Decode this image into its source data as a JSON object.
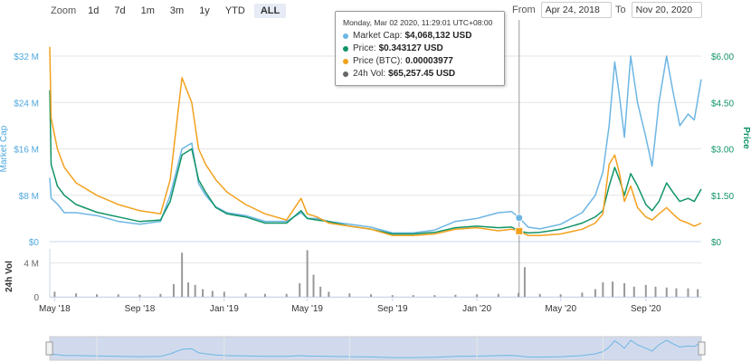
{
  "zoom": {
    "label": "Zoom",
    "buttons": [
      {
        "label": "1d",
        "active": false
      },
      {
        "label": "7d",
        "active": false
      },
      {
        "label": "1m",
        "active": false
      },
      {
        "label": "3m",
        "active": false
      },
      {
        "label": "1y",
        "active": false
      },
      {
        "label": "YTD",
        "active": false
      },
      {
        "label": "ALL",
        "active": true
      }
    ]
  },
  "range": {
    "from_label": "From",
    "from_value": "Apr 24, 2018",
    "to_label": "To",
    "to_value": "Nov 20, 2020"
  },
  "tooltip": {
    "header": "Monday, Mar 02 2020, 11:29:01 UTC+08:00",
    "rows": [
      {
        "label": "Market Cap:",
        "value": "$4,068,132 USD",
        "color": "#6db6e4"
      },
      {
        "label": "Price:",
        "value": "$0.343127 USD",
        "color": "#119466"
      },
      {
        "label": "Price (BTC):",
        "value": "0.00003977",
        "color": "#f2a11e"
      },
      {
        "label": "24h Vol:",
        "value": "$65,257.45 USD",
        "color": "#666666"
      }
    ]
  },
  "chart_data": {
    "type": "line",
    "x_range": [
      "2018-04-24",
      "2020-11-20"
    ],
    "x_tick_labels": [
      "May '18",
      "Sep '18",
      "Jan '19",
      "May '19",
      "Sep '19",
      "Jan '20",
      "May '20",
      "Sep '20"
    ],
    "x_ticks": [
      "2018-05-01",
      "2018-09-01",
      "2019-01-01",
      "2019-05-01",
      "2019-09-01",
      "2020-01-01",
      "2020-05-01",
      "2020-09-01"
    ],
    "left_axis": {
      "label": "Market Cap",
      "ticks": [
        "$0",
        "$8 M",
        "$16 M",
        "$24 M",
        "$32 M"
      ],
      "values": [
        0,
        8000000,
        16000000,
        24000000,
        32000000
      ],
      "ylim": [
        0,
        32000000
      ],
      "color": "#4fa8de"
    },
    "right_axis": {
      "label": "Price",
      "ticks": [
        "$0",
        "$1.50",
        "$3.00",
        "$4.50",
        "$6.00"
      ],
      "values": [
        0,
        1.5,
        3.0,
        4.5,
        6.0
      ],
      "ylim": [
        0,
        6.0
      ],
      "color": "#119466"
    },
    "volume_axis": {
      "label": "24h Vol",
      "ticks": [
        "0",
        "4 M"
      ],
      "values": [
        0,
        4000000
      ],
      "ylim": [
        0,
        4800000
      ]
    },
    "series": [
      {
        "name": "Market Cap",
        "axis": "left",
        "color": "#6db6e4",
        "x": [
          "2018-04-24",
          "2018-04-26",
          "2018-05-05",
          "2018-05-15",
          "2018-06-01",
          "2018-07-01",
          "2018-08-01",
          "2018-09-01",
          "2018-10-01",
          "2018-10-15",
          "2018-11-01",
          "2018-11-15",
          "2018-11-25",
          "2018-12-05",
          "2018-12-20",
          "2019-01-05",
          "2019-02-01",
          "2019-03-01",
          "2019-04-01",
          "2019-04-22",
          "2019-05-01",
          "2019-05-15",
          "2019-06-01",
          "2019-07-01",
          "2019-08-01",
          "2019-09-01",
          "2019-10-01",
          "2019-11-01",
          "2019-12-01",
          "2020-01-01",
          "2020-02-01",
          "2020-02-20",
          "2020-03-02",
          "2020-03-15",
          "2020-04-01",
          "2020-05-01",
          "2020-06-01",
          "2020-06-20",
          "2020-07-01",
          "2020-07-10",
          "2020-07-18",
          "2020-07-25",
          "2020-08-01",
          "2020-08-10",
          "2020-08-20",
          "2020-09-01",
          "2020-09-10",
          "2020-09-20",
          "2020-10-01",
          "2020-10-10",
          "2020-10-20",
          "2020-11-01",
          "2020-11-10",
          "2020-11-20"
        ],
        "y": [
          11000000,
          7500000,
          6500000,
          5000000,
          5000000,
          4500000,
          3500000,
          3000000,
          3500000,
          8000000,
          16000000,
          17000000,
          10000000,
          8000000,
          6000000,
          5000000,
          4500000,
          3500000,
          3500000,
          5000000,
          4000000,
          4000000,
          3500000,
          3000000,
          2500000,
          1500000,
          1500000,
          2000000,
          3500000,
          4000000,
          5000000,
          5200000,
          4100000,
          2500000,
          2200000,
          3000000,
          5000000,
          8000000,
          12000000,
          20000000,
          31000000,
          25000000,
          18000000,
          32000000,
          24000000,
          18000000,
          13000000,
          24000000,
          32000000,
          26000000,
          20000000,
          22000000,
          21000000,
          28000000
        ]
      },
      {
        "name": "Price",
        "axis": "right",
        "color": "#119466",
        "x": [
          "2018-04-24",
          "2018-04-26",
          "2018-05-05",
          "2018-05-15",
          "2018-06-01",
          "2018-07-01",
          "2018-08-01",
          "2018-09-01",
          "2018-10-01",
          "2018-10-15",
          "2018-11-01",
          "2018-11-15",
          "2018-11-25",
          "2018-12-05",
          "2018-12-20",
          "2019-01-05",
          "2019-02-01",
          "2019-03-01",
          "2019-04-01",
          "2019-04-22",
          "2019-05-01",
          "2019-05-15",
          "2019-06-01",
          "2019-07-01",
          "2019-08-01",
          "2019-09-01",
          "2019-10-01",
          "2019-11-01",
          "2019-12-01",
          "2020-01-01",
          "2020-02-01",
          "2020-02-20",
          "2020-03-02",
          "2020-03-15",
          "2020-04-01",
          "2020-05-01",
          "2020-06-01",
          "2020-06-20",
          "2020-07-01",
          "2020-07-10",
          "2020-07-18",
          "2020-07-25",
          "2020-08-01",
          "2020-08-10",
          "2020-08-20",
          "2020-09-01",
          "2020-09-10",
          "2020-09-20",
          "2020-10-01",
          "2020-10-10",
          "2020-10-20",
          "2020-11-01",
          "2020-11-10",
          "2020-11-20"
        ],
        "y": [
          4.9,
          2.5,
          1.8,
          1.5,
          1.2,
          0.95,
          0.8,
          0.65,
          0.7,
          1.3,
          2.8,
          3.0,
          2.0,
          1.6,
          1.1,
          0.9,
          0.8,
          0.6,
          0.6,
          1.0,
          0.75,
          0.7,
          0.65,
          0.5,
          0.4,
          0.25,
          0.25,
          0.3,
          0.45,
          0.5,
          0.45,
          0.47,
          0.34,
          0.28,
          0.3,
          0.4,
          0.6,
          0.8,
          1.0,
          1.8,
          2.4,
          2.0,
          1.5,
          2.2,
          1.8,
          1.2,
          1.0,
          1.3,
          1.9,
          1.6,
          1.3,
          1.4,
          1.3,
          1.7
        ]
      },
      {
        "name": "Price (BTC)",
        "axis": "right",
        "color": "#f2a11e",
        "x": [
          "2018-04-24",
          "2018-04-26",
          "2018-05-05",
          "2018-05-15",
          "2018-06-01",
          "2018-07-01",
          "2018-08-01",
          "2018-09-01",
          "2018-10-01",
          "2018-10-15",
          "2018-11-01",
          "2018-11-15",
          "2018-11-25",
          "2018-12-05",
          "2018-12-20",
          "2019-01-05",
          "2019-02-01",
          "2019-03-01",
          "2019-04-01",
          "2019-04-22",
          "2019-05-01",
          "2019-05-15",
          "2019-06-01",
          "2019-07-01",
          "2019-08-01",
          "2019-09-01",
          "2019-10-01",
          "2019-11-01",
          "2019-12-01",
          "2020-01-01",
          "2020-02-01",
          "2020-02-20",
          "2020-03-02",
          "2020-03-15",
          "2020-04-01",
          "2020-05-01",
          "2020-06-01",
          "2020-06-20",
          "2020-07-01",
          "2020-07-10",
          "2020-07-18",
          "2020-07-25",
          "2020-08-01",
          "2020-08-10",
          "2020-08-20",
          "2020-09-01",
          "2020-09-10",
          "2020-09-20",
          "2020-10-01",
          "2020-10-10",
          "2020-10-20",
          "2020-11-01",
          "2020-11-10",
          "2020-11-20"
        ],
        "y": [
          6.3,
          4.0,
          3.0,
          2.4,
          1.9,
          1.5,
          1.2,
          1.0,
          0.9,
          2.0,
          5.3,
          4.5,
          3.0,
          2.5,
          2.0,
          1.6,
          1.2,
          0.9,
          0.7,
          1.4,
          0.9,
          0.8,
          0.6,
          0.5,
          0.4,
          0.2,
          0.2,
          0.25,
          0.4,
          0.45,
          0.35,
          0.4,
          0.34,
          0.2,
          0.2,
          0.25,
          0.4,
          0.6,
          0.9,
          2.5,
          2.8,
          2.2,
          1.3,
          1.8,
          1.1,
          0.8,
          0.7,
          0.9,
          1.1,
          0.9,
          0.7,
          0.6,
          0.5,
          0.6
        ]
      }
    ],
    "volume": {
      "name": "24h Vol",
      "color": "#999999",
      "x": [
        "2018-05-01",
        "2018-06-01",
        "2018-07-01",
        "2018-08-01",
        "2018-09-01",
        "2018-10-01",
        "2018-10-20",
        "2018-11-01",
        "2018-11-10",
        "2018-11-20",
        "2018-12-01",
        "2018-12-15",
        "2019-01-01",
        "2019-02-01",
        "2019-03-01",
        "2019-04-01",
        "2019-04-20",
        "2019-05-01",
        "2019-05-10",
        "2019-05-20",
        "2019-06-01",
        "2019-07-01",
        "2019-08-01",
        "2019-09-01",
        "2019-10-01",
        "2019-11-01",
        "2019-12-01",
        "2020-01-01",
        "2020-02-01",
        "2020-03-01",
        "2020-03-10",
        "2020-04-01",
        "2020-05-01",
        "2020-06-01",
        "2020-06-20",
        "2020-07-01",
        "2020-07-15",
        "2020-08-01",
        "2020-08-15",
        "2020-09-01",
        "2020-09-15",
        "2020-10-01",
        "2020-10-15",
        "2020-11-01",
        "2020-11-15"
      ],
      "y": [
        600000,
        400000,
        300000,
        300000,
        250000,
        350000,
        1500000,
        5200000,
        1700000,
        1400000,
        900000,
        700000,
        600000,
        400000,
        350000,
        350000,
        1600000,
        5500000,
        2600000,
        1200000,
        600000,
        400000,
        300000,
        200000,
        200000,
        200000,
        250000,
        300000,
        350000,
        450000,
        3500000,
        350000,
        300000,
        500000,
        900000,
        1700000,
        1800000,
        1600000,
        1200000,
        1400000,
        1200000,
        1100000,
        1000000,
        1000000,
        900000
      ]
    },
    "hover_marker": {
      "x": "2020-03-02"
    }
  }
}
